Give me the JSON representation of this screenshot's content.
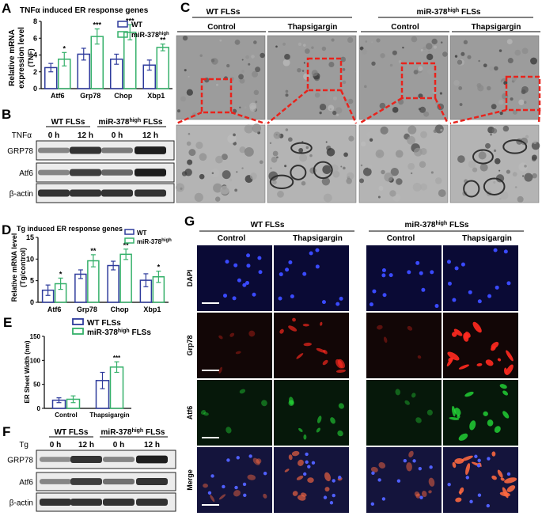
{
  "colors": {
    "wt": "#2e3b9c",
    "mir": "#35b06a"
  },
  "panelA": {
    "letter": "A",
    "title": "TNFα induced ER response genes",
    "ylabel_line1": "Relative mRNA",
    "ylabel_line2": "expression level",
    "ylabel_line3": "(TNF)",
    "legend": [
      {
        "label": "WT"
      },
      {
        "label": "miR-378",
        "sup": "high"
      }
    ],
    "chart_data": {
      "type": "bar",
      "categories": [
        "Atf6",
        "Grp78",
        "Chop",
        "Xbp1"
      ],
      "ylim": [
        0,
        8
      ],
      "yticks": [
        "0",
        "2",
        "4",
        "6",
        "8"
      ],
      "series": [
        {
          "name": "WT",
          "values": [
            2.5,
            4.1,
            3.5,
            2.8
          ],
          "errors": [
            0.5,
            0.7,
            0.6,
            0.6
          ]
        },
        {
          "name": "miR-378high",
          "values": [
            3.5,
            6.2,
            6.7,
            4.9
          ],
          "errors": [
            0.8,
            0.9,
            0.9,
            0.4
          ]
        }
      ],
      "significance": [
        "*",
        "***",
        "***",
        "**"
      ]
    }
  },
  "panelB": {
    "letter": "B",
    "group1": "WT FLSs",
    "group2_pre": "miR-378",
    "group2_sup": "high",
    "group2_post": " FLSs",
    "treatment": "TNFα",
    "lanes": [
      "0 h",
      "12 h",
      "0 h",
      "12 h"
    ],
    "rows": [
      {
        "label": "GRP78",
        "intensity": [
          0.45,
          0.85,
          0.5,
          0.95
        ]
      },
      {
        "label": "Atf6",
        "intensity": [
          0.45,
          0.8,
          0.6,
          0.95
        ]
      },
      {
        "label": "β-actin",
        "intensity": [
          0.85,
          0.85,
          0.85,
          0.85
        ]
      }
    ]
  },
  "panelC": {
    "letter": "C",
    "group1": "WT FLSs",
    "group2_pre": "miR-378",
    "group2_sup": "high",
    "group2_post": " FLSs",
    "conditions": [
      "Control",
      "Thapsigargin",
      "Control",
      "Thapsigargin"
    ]
  },
  "panelD": {
    "letter": "D",
    "title": "Tg induced ER response genes",
    "ylabel_line1": "Relative mRNA level",
    "ylabel_line2": "(Tg/control)",
    "legend": [
      {
        "label": "WT"
      },
      {
        "label": "miR-378",
        "sup": "high"
      }
    ],
    "chart_data": {
      "type": "bar",
      "categories": [
        "Atf6",
        "Grp78",
        "Chop",
        "Xbp1"
      ],
      "ylim": [
        0,
        15
      ],
      "yticks": [
        "0",
        "5",
        "10",
        "15"
      ],
      "series": [
        {
          "name": "WT",
          "values": [
            2.8,
            6.5,
            8.5,
            5.1
          ],
          "errors": [
            1.2,
            1.0,
            1.0,
            1.5
          ]
        },
        {
          "name": "miR-378high",
          "values": [
            4.3,
            9.6,
            11.1,
            5.9
          ],
          "errors": [
            1.3,
            1.4,
            1.2,
            1.3
          ]
        }
      ],
      "significance": [
        "*",
        "**",
        "**",
        "*"
      ]
    }
  },
  "panelE": {
    "letter": "E",
    "ylabel": "ER Sheet Width (nm)",
    "legend": [
      {
        "label": "WT FLSs"
      },
      {
        "label": "miR-378",
        "sup": "high",
        "post": " FLSs"
      }
    ],
    "chart_data": {
      "type": "bar",
      "categories": [
        "Control",
        "Thapsigargin"
      ],
      "ylim": [
        0,
        150
      ],
      "yticks": [
        "0",
        "50",
        "100",
        "150"
      ],
      "series": [
        {
          "name": "WT FLSs",
          "values": [
            17,
            58
          ],
          "errors": [
            5,
            17
          ]
        },
        {
          "name": "miR-378high FLSs",
          "values": [
            19,
            86
          ],
          "errors": [
            7,
            11
          ]
        }
      ],
      "significance": [
        "",
        "***"
      ]
    }
  },
  "panelF": {
    "letter": "F",
    "group1": "WT FLSs",
    "group2_pre": "miR-378",
    "group2_sup": "high",
    "group2_post": " FLSs",
    "treatment": "Tg",
    "lanes": [
      "0 h",
      "12 h",
      "0 h",
      "12 h"
    ],
    "rows": [
      {
        "label": "GRP78",
        "intensity": [
          0.4,
          0.85,
          0.45,
          0.95
        ]
      },
      {
        "label": "Atf6",
        "intensity": [
          0.45,
          0.8,
          0.55,
          0.85
        ]
      },
      {
        "label": "β-actin",
        "intensity": [
          0.85,
          0.85,
          0.85,
          0.85
        ]
      }
    ]
  },
  "panelG": {
    "letter": "G",
    "group1": "WT FLSs",
    "group2_pre": "miR-378",
    "group2_sup": "high",
    "group2_post": " FLSs",
    "conditions": [
      "Control",
      "Thapsigargin",
      "Control",
      "Thapsigargin"
    ],
    "rows": [
      {
        "label": "DAPI",
        "tint": "#2a3aff",
        "signal": [
          0.6,
          0.6,
          0.6,
          0.6
        ]
      },
      {
        "label": "Grp78",
        "tint": "#ff2a20",
        "signal": [
          0.1,
          0.6,
          0.08,
          0.95
        ]
      },
      {
        "label": "Atf6",
        "tint": "#2aff40",
        "signal": [
          0.15,
          0.35,
          0.1,
          0.6
        ]
      },
      {
        "label": "Merge",
        "tint": "#ff6a40",
        "signal": [
          0.3,
          0.55,
          0.35,
          0.9
        ]
      }
    ]
  }
}
